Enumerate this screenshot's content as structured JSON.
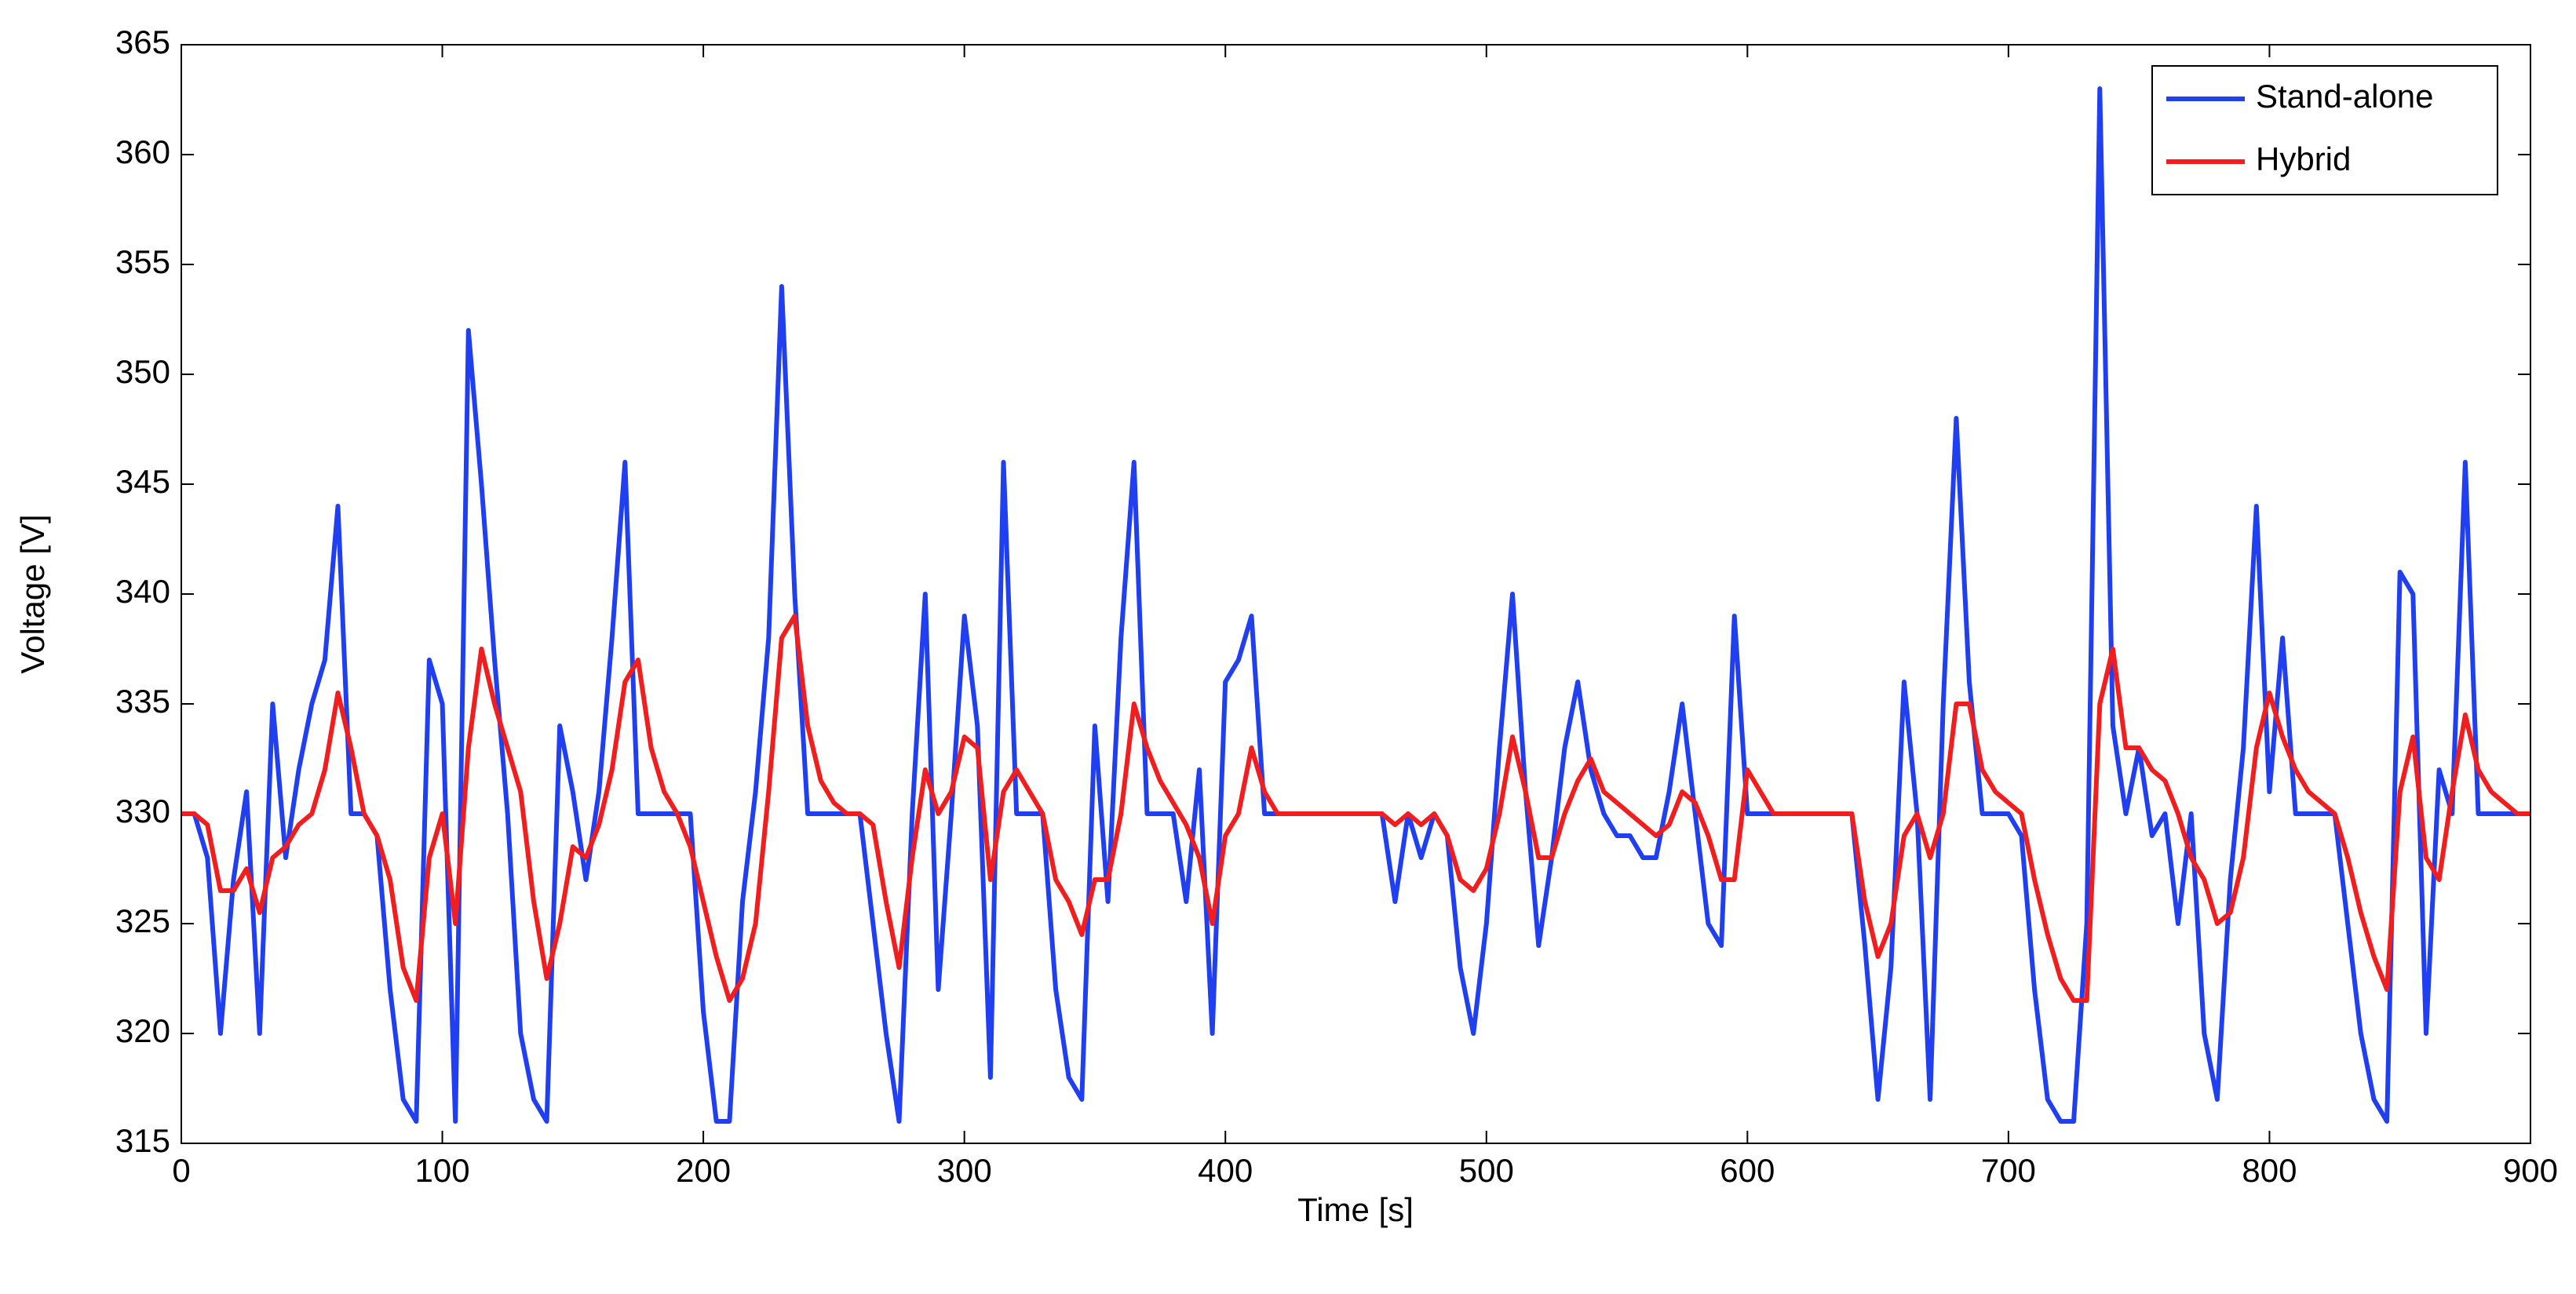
{
  "chart_data": {
    "type": "line",
    "x_label": "Time [s]",
    "y_label": "Voltage [V]",
    "x": [
      0,
      5,
      10,
      15,
      20,
      25,
      30,
      35,
      40,
      45,
      50,
      55,
      60,
      65,
      70,
      75,
      80,
      85,
      90,
      95,
      100,
      105,
      110,
      115,
      120,
      125,
      130,
      135,
      140,
      145,
      150,
      155,
      160,
      165,
      170,
      175,
      180,
      185,
      190,
      195,
      200,
      205,
      210,
      215,
      220,
      225,
      230,
      235,
      240,
      245,
      250,
      255,
      260,
      265,
      270,
      275,
      280,
      285,
      290,
      295,
      300,
      305,
      310,
      315,
      320,
      325,
      330,
      335,
      340,
      345,
      350,
      355,
      360,
      365,
      370,
      375,
      380,
      385,
      390,
      395,
      400,
      405,
      410,
      415,
      420,
      425,
      430,
      435,
      440,
      445,
      450,
      455,
      460,
      465,
      470,
      475,
      480,
      485,
      490,
      495,
      500,
      505,
      510,
      515,
      520,
      525,
      530,
      535,
      540,
      545,
      550,
      555,
      560,
      565,
      570,
      575,
      580,
      585,
      590,
      595,
      600,
      605,
      610,
      615,
      620,
      625,
      630,
      635,
      640,
      645,
      650,
      655,
      660,
      665,
      670,
      675,
      680,
      685,
      690,
      695,
      700,
      705,
      710,
      715,
      720,
      725,
      730,
      735,
      740,
      745,
      750,
      755,
      760,
      765,
      770,
      775,
      780,
      785,
      790,
      795,
      800,
      805,
      810,
      815,
      820,
      825,
      830,
      835,
      840,
      845,
      850,
      855,
      860,
      865,
      870,
      875,
      880,
      885,
      890,
      895,
      900
    ],
    "series": [
      {
        "name": "Stand-alone",
        "color": "#1f3ff0",
        "values": [
          330,
          330,
          328,
          320,
          327,
          331,
          320,
          335,
          328,
          332,
          335,
          337,
          344,
          330,
          330,
          329,
          322,
          317,
          316,
          337,
          335,
          316,
          352,
          345,
          337,
          330,
          320,
          317,
          316,
          334,
          331,
          327,
          331,
          338,
          346,
          330,
          330,
          330,
          330,
          330,
          321,
          316,
          316,
          326,
          331,
          338,
          354,
          340,
          330,
          330,
          330,
          330,
          330,
          325,
          320,
          316,
          330,
          340,
          322,
          330,
          339,
          334,
          318,
          346,
          330,
          330,
          330,
          322,
          318,
          317,
          334,
          326,
          338,
          346,
          330,
          330,
          330,
          326,
          332,
          320,
          336,
          337,
          339,
          330,
          330,
          330,
          330,
          330,
          330,
          330,
          330,
          330,
          330,
          326,
          330,
          328,
          330,
          329,
          323,
          320,
          325,
          333,
          340,
          331,
          324,
          328,
          333,
          336,
          332,
          330,
          329,
          329,
          328,
          328,
          331,
          335,
          330,
          325,
          324,
          339,
          330,
          330,
          330,
          330,
          330,
          330,
          330,
          330,
          330,
          324,
          317,
          323,
          336,
          330,
          317,
          335,
          348,
          336,
          330,
          330,
          330,
          329,
          322,
          317,
          316,
          316,
          325,
          363,
          334,
          330,
          333,
          329,
          330,
          325,
          330,
          320,
          317,
          327,
          333,
          344,
          331,
          338,
          330,
          330,
          330,
          330,
          325,
          320,
          317,
          316,
          341,
          340,
          320,
          332,
          330,
          346,
          330,
          330,
          330,
          330,
          330
        ]
      },
      {
        "name": "Hybrid",
        "color": "#f01e1e",
        "values": [
          330,
          330,
          329.5,
          326.5,
          326.5,
          327.5,
          325.5,
          328,
          328.5,
          329.5,
          330,
          332,
          335.5,
          333,
          330,
          329,
          327,
          323,
          321.5,
          328,
          330,
          325,
          333,
          337.5,
          335,
          333,
          331,
          326,
          322.5,
          325,
          328.5,
          328,
          329.5,
          332,
          336,
          337,
          333,
          331,
          330,
          328.5,
          326,
          323.5,
          321.5,
          322.5,
          325,
          331,
          338,
          339,
          334,
          331.5,
          330.5,
          330,
          330,
          329.5,
          326,
          323,
          328,
          332,
          330,
          331,
          333.5,
          333,
          327,
          331,
          332,
          331,
          330,
          327,
          326,
          324.5,
          327,
          327,
          330,
          335,
          333,
          331.5,
          330.5,
          329.5,
          328,
          325,
          329,
          330,
          333,
          331,
          330,
          330,
          330,
          330,
          330,
          330,
          330,
          330,
          330,
          329.5,
          330,
          329.5,
          330,
          329,
          327,
          326.5,
          327.5,
          330,
          333.5,
          331,
          328,
          328,
          330,
          331.5,
          332.5,
          331,
          330.5,
          330,
          329.5,
          329,
          329.5,
          331,
          330.5,
          329,
          327,
          327,
          332,
          331,
          330,
          330,
          330,
          330,
          330,
          330,
          330,
          326,
          323.5,
          325,
          329,
          330,
          328,
          330,
          335,
          335,
          332,
          331,
          330.5,
          330,
          327,
          324.5,
          322.5,
          321.5,
          321.5,
          335,
          337.5,
          333,
          333,
          332,
          331.5,
          330,
          328,
          327,
          325,
          325.5,
          328,
          333,
          335.5,
          333.5,
          332,
          331,
          330.5,
          330,
          328,
          325.5,
          323.5,
          322,
          331,
          333.5,
          328,
          327,
          331,
          334.5,
          332,
          331,
          330.5,
          330,
          330
        ]
      }
    ],
    "xlim": [
      0,
      900
    ],
    "xticks": [
      0,
      100,
      200,
      300,
      400,
      500,
      600,
      700,
      800,
      900
    ],
    "ylim": [
      315,
      365
    ],
    "yticks": [
      315,
      320,
      325,
      330,
      335,
      340,
      345,
      350,
      355,
      360,
      365
    ],
    "grid": false,
    "legend": "upper right"
  }
}
